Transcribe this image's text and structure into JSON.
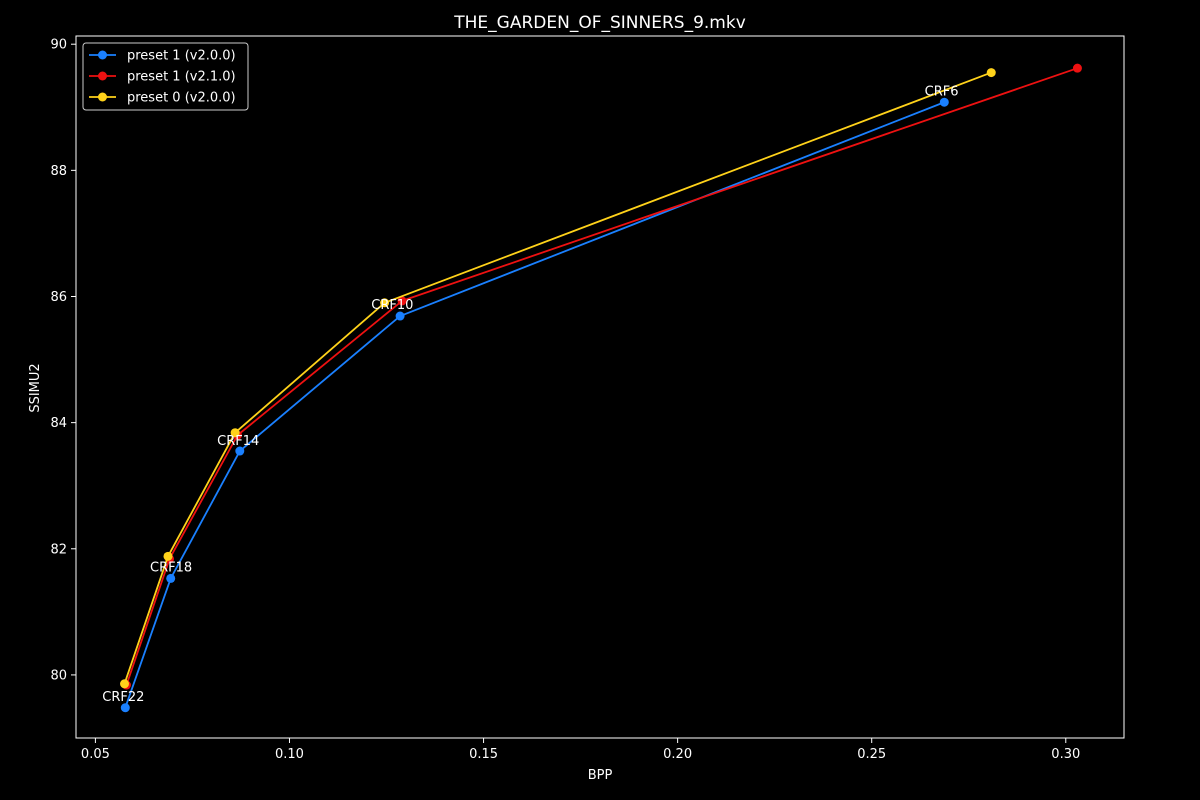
{
  "chart_data": {
    "type": "line",
    "title": "THE_GARDEN_OF_SINNERS_9.mkv",
    "xlabel": "BPP",
    "ylabel": "SSIMU2",
    "xlim": [
      0.045,
      0.315
    ],
    "ylim": [
      79.0,
      90.13
    ],
    "x_ticks": [
      0.05,
      0.1,
      0.15,
      0.2,
      0.25,
      0.3
    ],
    "x_tick_labels": [
      "0.05",
      "0.10",
      "0.15",
      "0.20",
      "0.25",
      "0.30"
    ],
    "y_ticks": [
      80,
      82,
      84,
      86,
      88,
      90
    ],
    "y_tick_labels": [
      "80",
      "82",
      "84",
      "86",
      "88",
      "90"
    ],
    "grid": false,
    "legend": "top-left",
    "series": [
      {
        "name": "preset 1 (v2.0.0)",
        "color": "#1a80ff",
        "points": [
          [
            0.0577,
            79.48
          ],
          [
            0.0694,
            81.53
          ],
          [
            0.0872,
            83.55
          ],
          [
            0.1285,
            85.69
          ],
          [
            0.2687,
            89.08
          ]
        ]
      },
      {
        "name": "preset 1 (v2.1.0)",
        "color": "#ee1111",
        "points": [
          [
            0.058,
            79.84
          ],
          [
            0.0691,
            81.84
          ],
          [
            0.0866,
            83.8
          ],
          [
            0.129,
            85.93
          ],
          [
            0.303,
            89.62
          ]
        ]
      },
      {
        "name": "preset 0 (v2.0.0)",
        "color": "#ffd21a",
        "points": [
          [
            0.0575,
            79.86
          ],
          [
            0.0687,
            81.88
          ],
          [
            0.086,
            83.84
          ],
          [
            0.1245,
            85.9
          ],
          [
            0.2808,
            89.55
          ]
        ]
      }
    ],
    "annotations": [
      {
        "text": "CRF22",
        "x": 0.0572,
        "y": 79.66
      },
      {
        "text": "CRF18",
        "x": 0.0695,
        "y": 81.71
      },
      {
        "text": "CRF14",
        "x": 0.0868,
        "y": 83.72
      },
      {
        "text": "CRF10",
        "x": 0.1265,
        "y": 85.87
      },
      {
        "text": "CRF6",
        "x": 0.268,
        "y": 89.26
      }
    ]
  }
}
